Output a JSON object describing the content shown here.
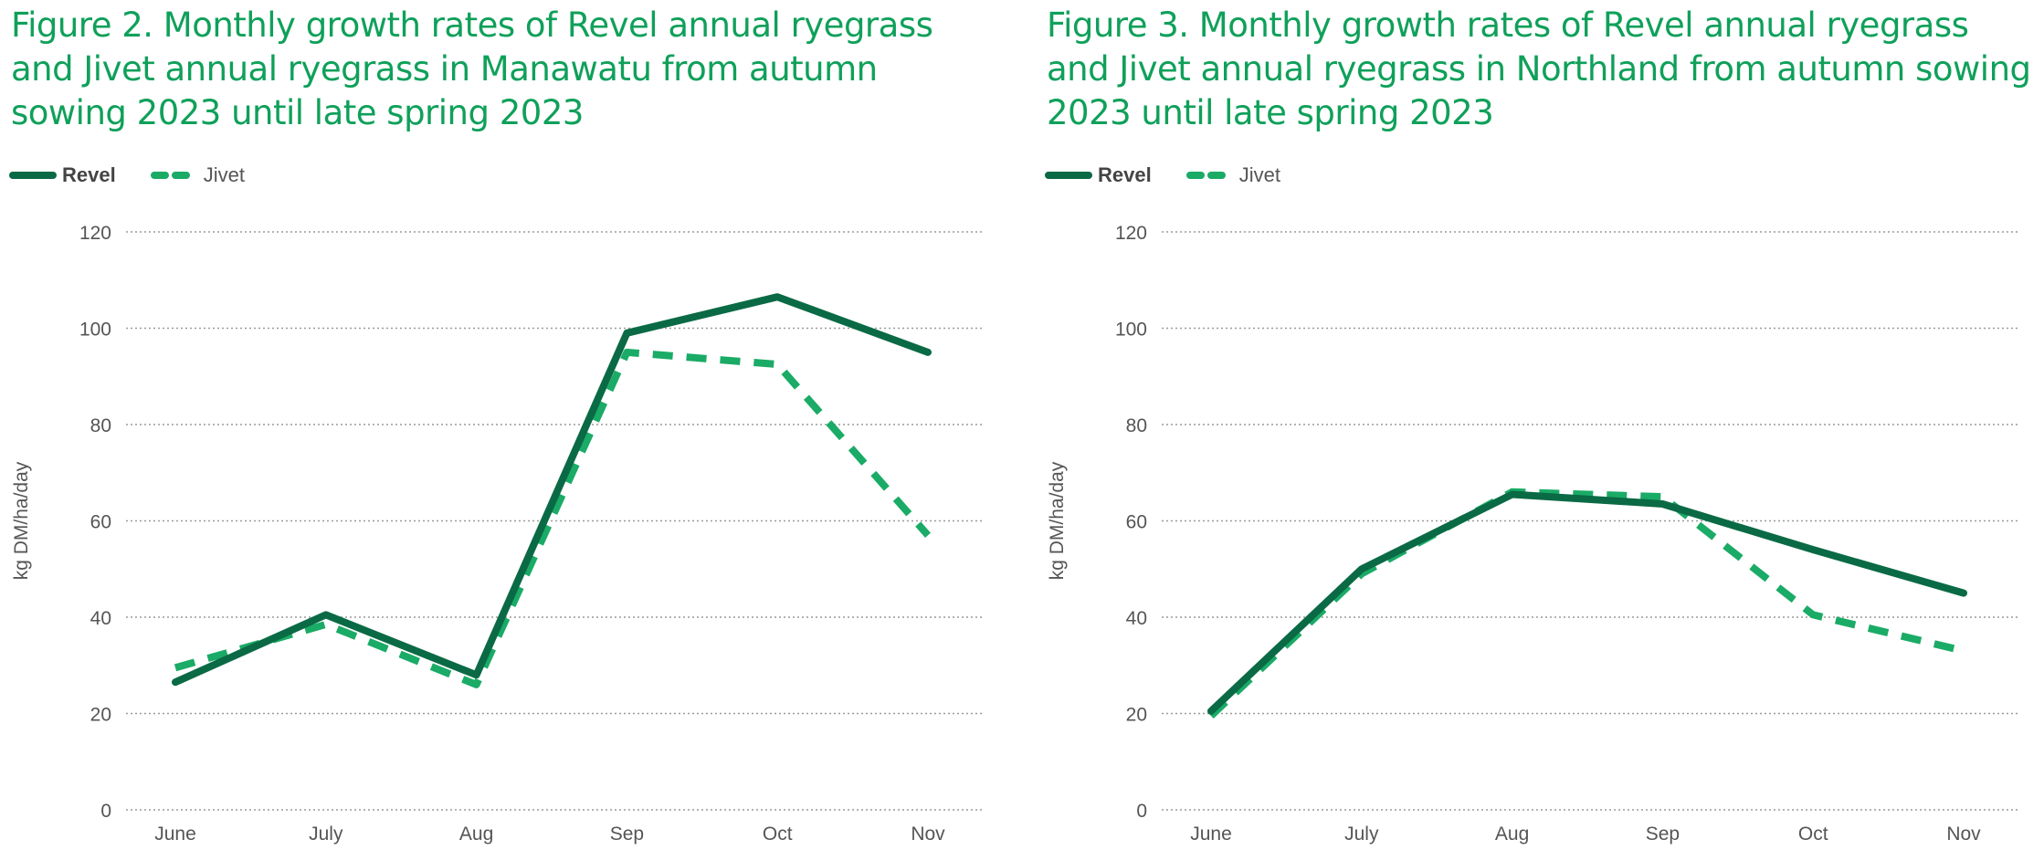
{
  "colors": {
    "title": "#0fa05a",
    "revel": "#0a6a45",
    "jivet": "#1aab66",
    "grid": "#9a9a9a",
    "text": "#555555"
  },
  "chart_data": [
    {
      "type": "line",
      "title": "Figure 2. Monthly growth rates of Revel annual ryegrass and Jivet annual ryegrass in Manawatu from autumn sowing 2023 until late spring 2023",
      "xlabel": "",
      "ylabel": "kg DM/ha/day",
      "categories": [
        "June",
        "July",
        "Aug",
        "Sep",
        "Oct",
        "Nov"
      ],
      "ylim": [
        0,
        120
      ],
      "yticks": [
        0,
        20,
        40,
        60,
        80,
        100,
        120
      ],
      "grid": true,
      "legend": "top-left",
      "series": [
        {
          "name": "Revel",
          "style": "solid",
          "values": [
            26.5,
            40.5,
            28,
            99,
            106.5,
            95
          ]
        },
        {
          "name": "Jivet",
          "style": "dashed",
          "values": [
            29.5,
            38.5,
            26,
            95,
            92.5,
            57
          ]
        }
      ]
    },
    {
      "type": "line",
      "title": "Figure 3. Monthly growth rates of Revel annual ryegrass and Jivet annual ryegrass in Northland from autumn sowing 2023 until late spring 2023",
      "xlabel": "",
      "ylabel": "kg DM/ha/day",
      "categories": [
        "June",
        "July",
        "Aug",
        "Sep",
        "Oct",
        "Nov"
      ],
      "ylim": [
        0,
        120
      ],
      "yticks": [
        0,
        20,
        40,
        60,
        80,
        100,
        120
      ],
      "grid": true,
      "legend": "top-left",
      "series": [
        {
          "name": "Revel",
          "style": "solid",
          "values": [
            20.5,
            50,
            65.5,
            63.5,
            54,
            45
          ]
        },
        {
          "name": "Jivet",
          "style": "dashed",
          "values": [
            19.5,
            49,
            66,
            65,
            40.5,
            33
          ]
        }
      ]
    }
  ]
}
